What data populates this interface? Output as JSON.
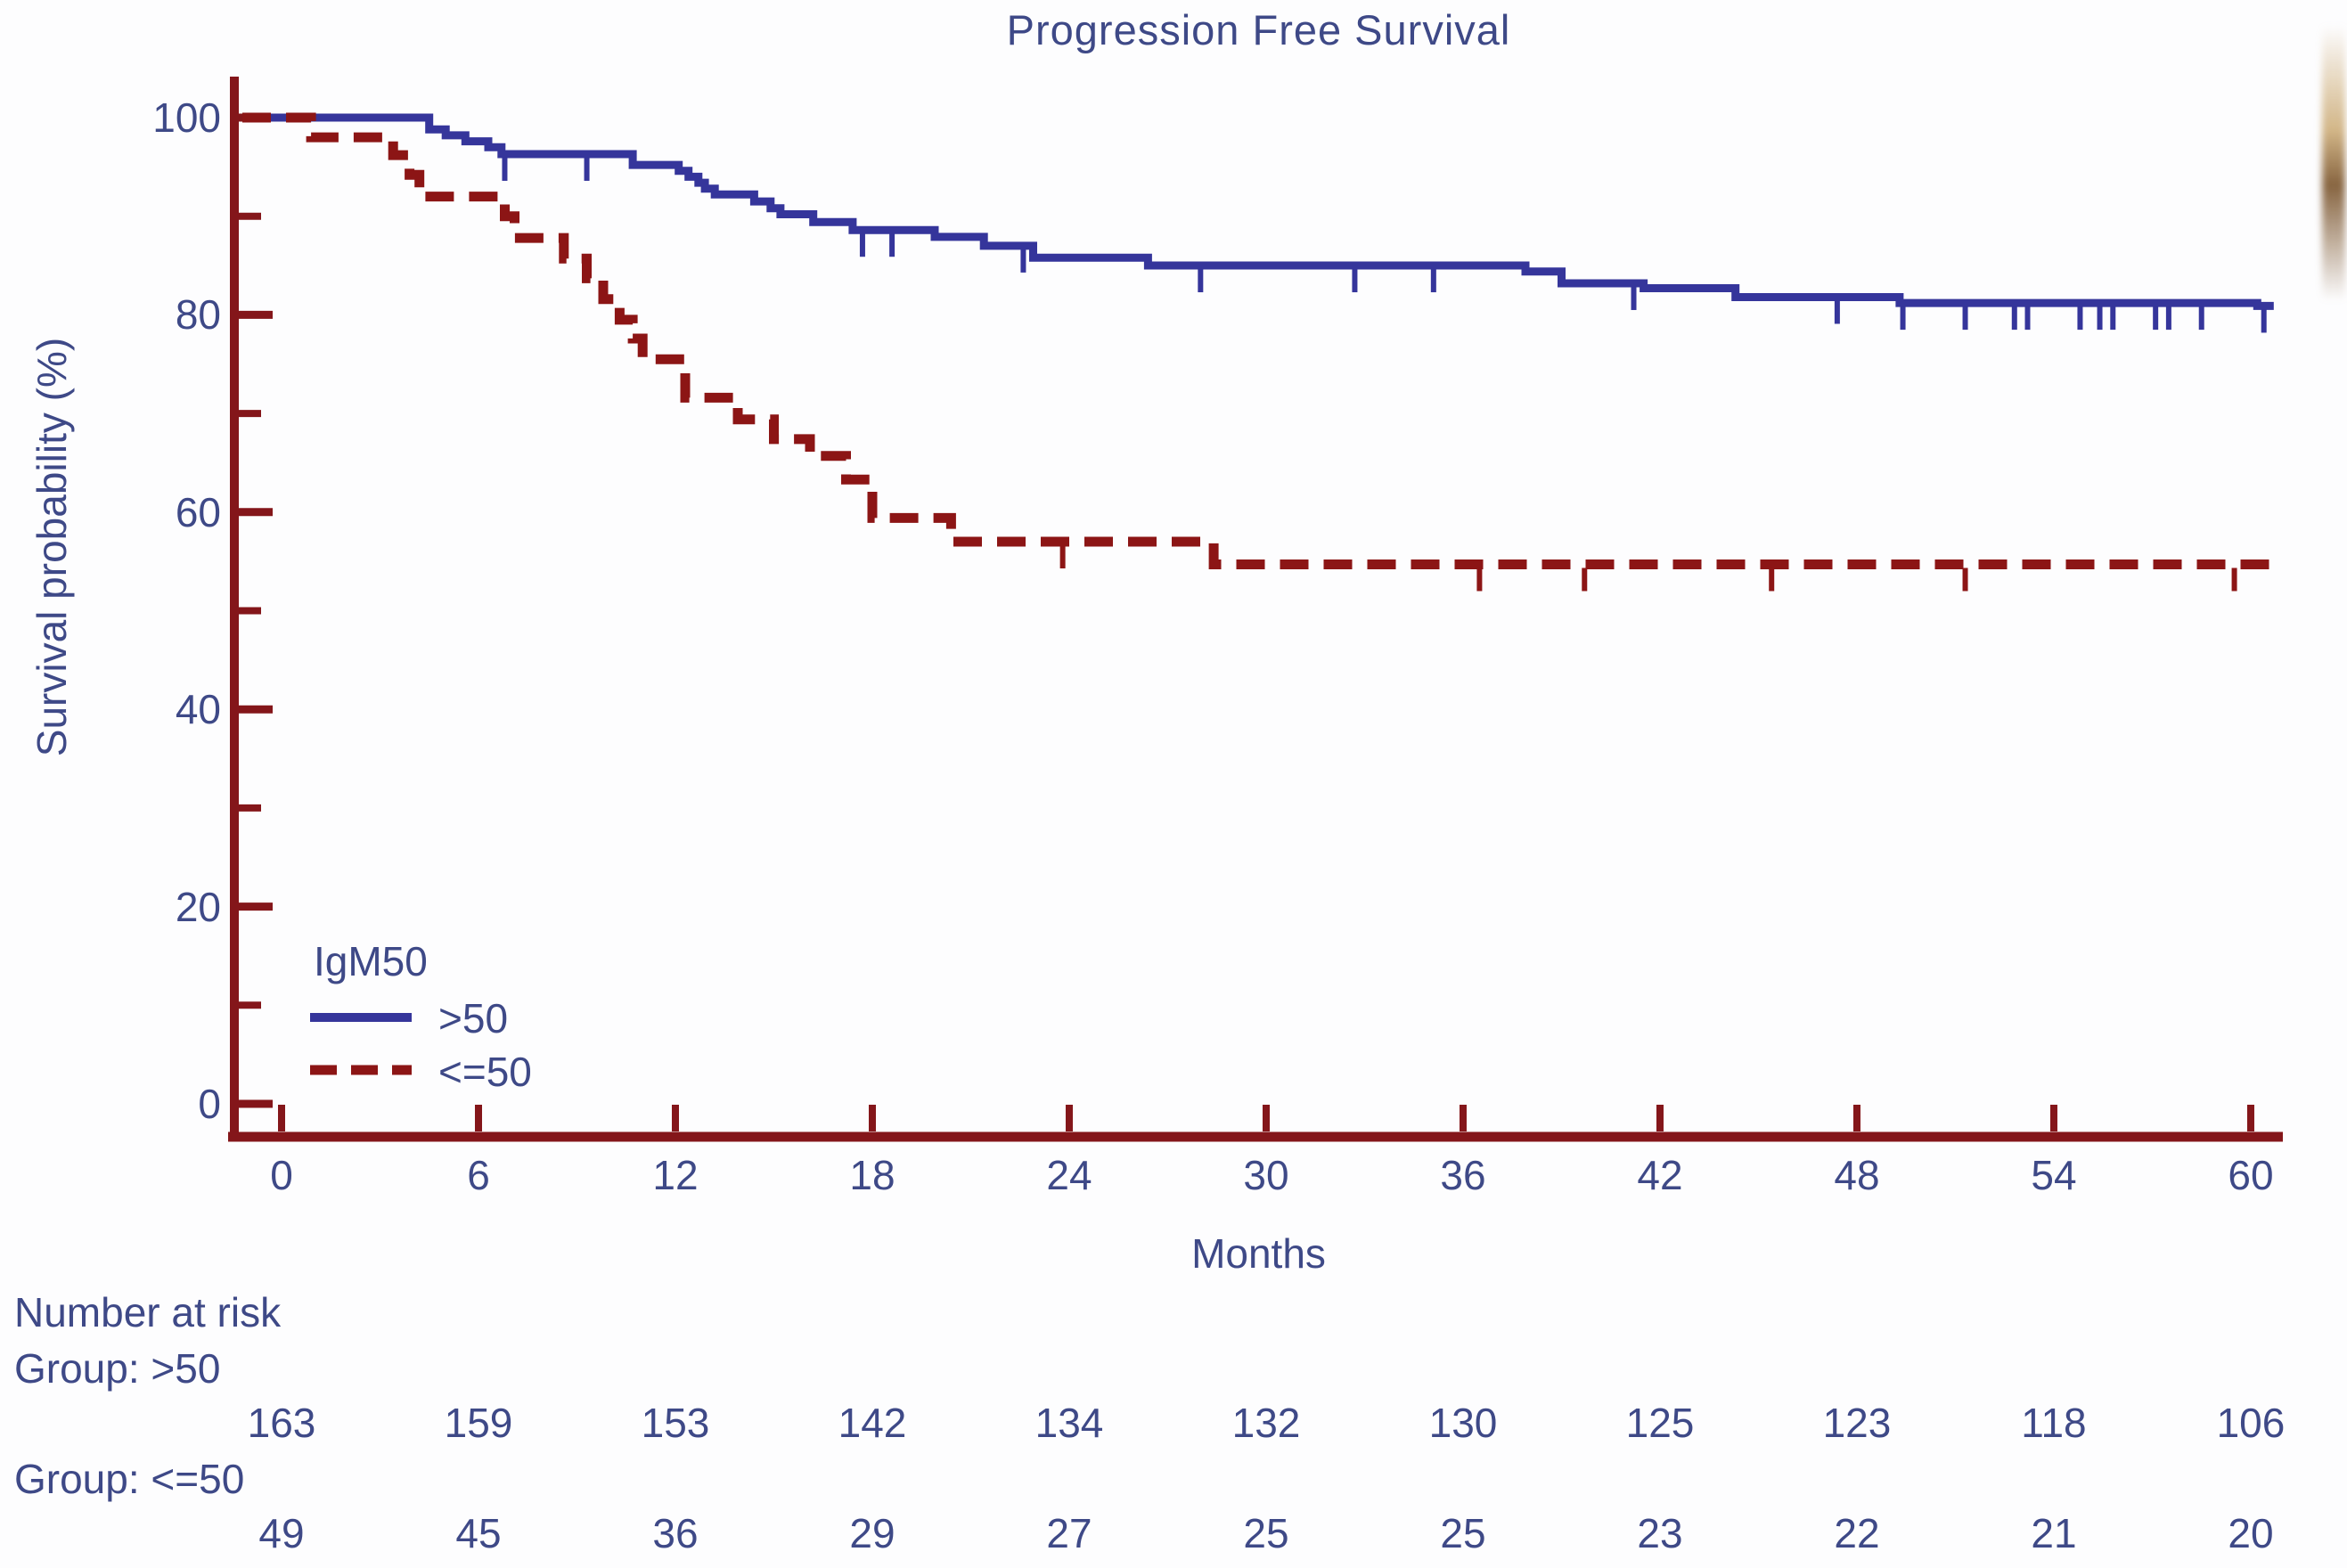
{
  "title": "Progression Free Survival",
  "colors": {
    "text": "#3e4987",
    "axis": "#84161a",
    "series_high": "#35359b",
    "series_low": "#8c1515",
    "background": "#fdfdfe"
  },
  "legend": {
    "title": "IgM50",
    "entries": [
      {
        "label": ">50",
        "line_style": "solid",
        "color": "#35359b"
      },
      {
        "label": "<=50",
        "line_style": "dashed",
        "color": "#8c1515"
      }
    ]
  },
  "chart_data": {
    "type": "line",
    "subtype": "kaplan-meier-step",
    "title": "Progression Free Survival",
    "xlabel": "Months",
    "ylabel": "Survival probability (%)",
    "xlim": [
      0,
      60
    ],
    "ylim": [
      0,
      100
    ],
    "x_ticks": [
      0,
      6,
      12,
      18,
      24,
      30,
      36,
      42,
      48,
      54,
      60
    ],
    "y_ticks": [
      0,
      20,
      40,
      60,
      80,
      100
    ],
    "y_minor_ticks": [
      10,
      30,
      50,
      70,
      90
    ],
    "grid": false,
    "legend_position": "lower-left",
    "series": [
      {
        "name": ">50",
        "group_size": 163,
        "line_style": "solid",
        "color": "#35359b",
        "steps": [
          [
            0,
            100
          ],
          [
            4.5,
            98.8
          ],
          [
            5.0,
            98.2
          ],
          [
            5.6,
            97.6
          ],
          [
            6.3,
            97.0
          ],
          [
            6.7,
            96.3
          ],
          [
            10.7,
            95.2
          ],
          [
            12.1,
            94.6
          ],
          [
            12.4,
            94.0
          ],
          [
            12.7,
            93.4
          ],
          [
            12.9,
            92.8
          ],
          [
            13.2,
            92.2
          ],
          [
            14.4,
            91.5
          ],
          [
            14.9,
            90.8
          ],
          [
            15.2,
            90.2
          ],
          [
            16.2,
            89.4
          ],
          [
            17.4,
            88.6
          ],
          [
            19.9,
            87.9
          ],
          [
            21.4,
            87.0
          ],
          [
            22.9,
            85.8
          ],
          [
            26.4,
            85.0
          ],
          [
            37.9,
            84.4
          ],
          [
            39.0,
            83.2
          ],
          [
            41.5,
            82.7
          ],
          [
            44.3,
            81.8
          ],
          [
            49.3,
            81.2
          ],
          [
            60.2,
            80.9
          ]
        ],
        "end_month": 60.7,
        "censor_months": [
          6.8,
          9.3,
          17.7,
          18.6,
          22.6,
          28.0,
          32.7,
          35.1,
          41.2,
          47.4,
          49.4,
          51.3,
          52.8,
          53.2,
          54.8,
          55.4,
          55.8,
          57.1,
          57.5,
          58.5,
          60.4
        ]
      },
      {
        "name": "<=50",
        "group_size": 49,
        "line_style": "dashed",
        "color": "#8c1515",
        "steps": [
          [
            0,
            100
          ],
          [
            0.9,
            98.0
          ],
          [
            3.4,
            96.2
          ],
          [
            3.9,
            94.2
          ],
          [
            4.2,
            92.0
          ],
          [
            6.8,
            90.0
          ],
          [
            7.1,
            87.8
          ],
          [
            8.6,
            85.7
          ],
          [
            9.3,
            83.7
          ],
          [
            9.8,
            81.6
          ],
          [
            10.3,
            79.5
          ],
          [
            10.7,
            77.6
          ],
          [
            11.0,
            75.5
          ],
          [
            12.3,
            71.6
          ],
          [
            13.9,
            69.4
          ],
          [
            15.0,
            67.4
          ],
          [
            16.1,
            65.7
          ],
          [
            17.2,
            63.3
          ],
          [
            18.0,
            59.4
          ],
          [
            20.4,
            57.0
          ],
          [
            28.4,
            54.7
          ]
        ],
        "end_month": 60.6,
        "censor_months": [
          23.8,
          36.5,
          39.7,
          45.4,
          51.3,
          59.5
        ]
      }
    ]
  },
  "risk_table": {
    "header": "Number at risk",
    "months": [
      0,
      6,
      12,
      18,
      24,
      30,
      36,
      42,
      48,
      54,
      60
    ],
    "groups": [
      {
        "label": "Group: >50",
        "counts": [
          163,
          159,
          153,
          142,
          134,
          132,
          130,
          125,
          123,
          118,
          106
        ]
      },
      {
        "label": "Group: <=50",
        "counts": [
          49,
          45,
          36,
          29,
          27,
          25,
          25,
          23,
          22,
          21,
          20
        ]
      }
    ]
  }
}
